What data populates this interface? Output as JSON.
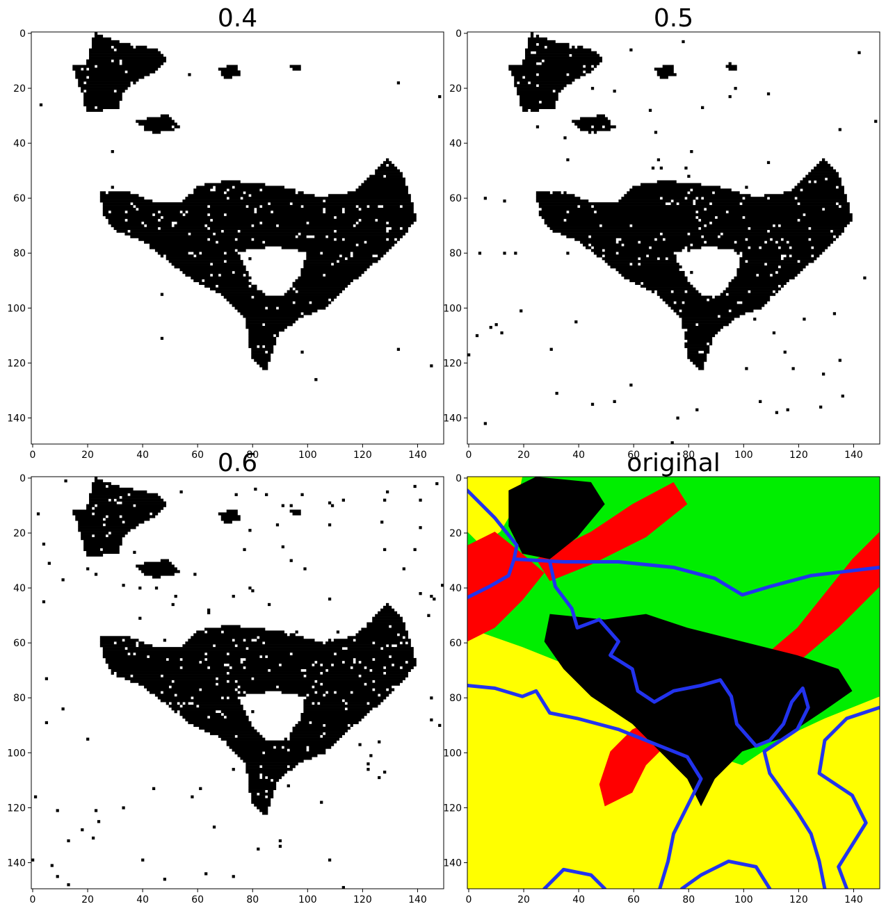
{
  "chart_data": [
    {
      "type": "heatmap",
      "title": "0.4",
      "xlim": [
        0,
        150
      ],
      "ylim": [
        0,
        150
      ],
      "xticks": [
        0,
        20,
        40,
        60,
        80,
        100,
        120,
        140
      ],
      "yticks": [
        0,
        20,
        40,
        60,
        80,
        100,
        120,
        140
      ],
      "colors": {
        "mask": "#000000",
        "background": "#ffffff"
      },
      "threshold": 0.4
    },
    {
      "type": "heatmap",
      "title": "0.5",
      "xlim": [
        0,
        150
      ],
      "ylim": [
        0,
        150
      ],
      "xticks": [
        0,
        20,
        40,
        60,
        80,
        100,
        120,
        140
      ],
      "yticks": [
        0,
        20,
        40,
        60,
        80,
        100,
        120,
        140
      ],
      "colors": {
        "mask": "#000000",
        "background": "#ffffff"
      },
      "threshold": 0.5
    },
    {
      "type": "heatmap",
      "title": "0.6",
      "xlim": [
        0,
        150
      ],
      "ylim": [
        0,
        150
      ],
      "xticks": [
        0,
        20,
        40,
        60,
        80,
        100,
        120,
        140
      ],
      "yticks": [
        0,
        20,
        40,
        60,
        80,
        100,
        120,
        140
      ],
      "colors": {
        "mask": "#000000",
        "background": "#ffffff"
      },
      "threshold": 0.6
    },
    {
      "type": "heatmap",
      "title": "original",
      "xlim": [
        0,
        150
      ],
      "ylim": [
        0,
        150
      ],
      "xticks": [
        0,
        20,
        40,
        60,
        80,
        100,
        120,
        140
      ],
      "yticks": [
        0,
        20,
        40,
        60,
        80,
        100,
        120,
        140
      ],
      "colors": {
        "yellow": "#ffff00",
        "green": "#00ee00",
        "red": "#ff0000",
        "black": "#000000",
        "river": "#2233ee"
      }
    }
  ]
}
